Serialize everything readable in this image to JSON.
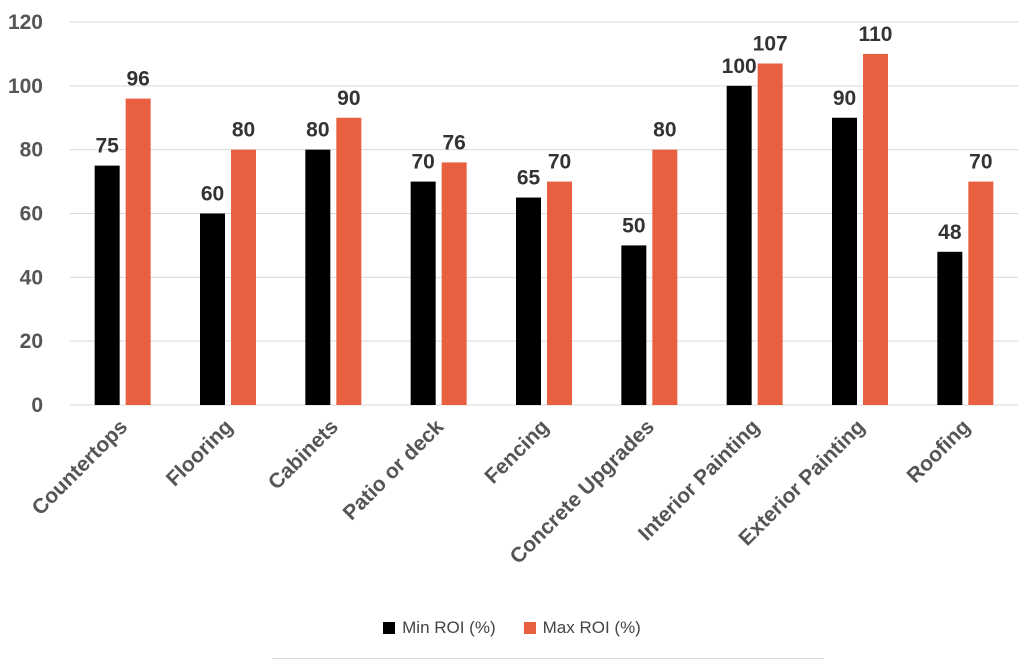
{
  "chart_data": {
    "type": "bar",
    "categories": [
      "Countertops",
      "Flooring",
      "Cabinets",
      "Patio or deck",
      "Fencing",
      "Concrete Upgrades",
      "Interior Painting",
      "Exterior Painting",
      "Roofing"
    ],
    "series": [
      {
        "name": "Min ROI (%)",
        "color": "#000000",
        "values": [
          75,
          60,
          80,
          70,
          65,
          50,
          100,
          90,
          48
        ]
      },
      {
        "name": "Max ROI (%)",
        "color": "#E8603F",
        "values": [
          96,
          80,
          90,
          76,
          70,
          80,
          107,
          110,
          70
        ]
      }
    ],
    "yticks": [
      0,
      20,
      40,
      60,
      80,
      100,
      120
    ],
    "ylim": [
      0,
      120
    ],
    "grid": true,
    "legend_position": "bottom",
    "title": "",
    "xlabel": "",
    "ylabel": ""
  }
}
